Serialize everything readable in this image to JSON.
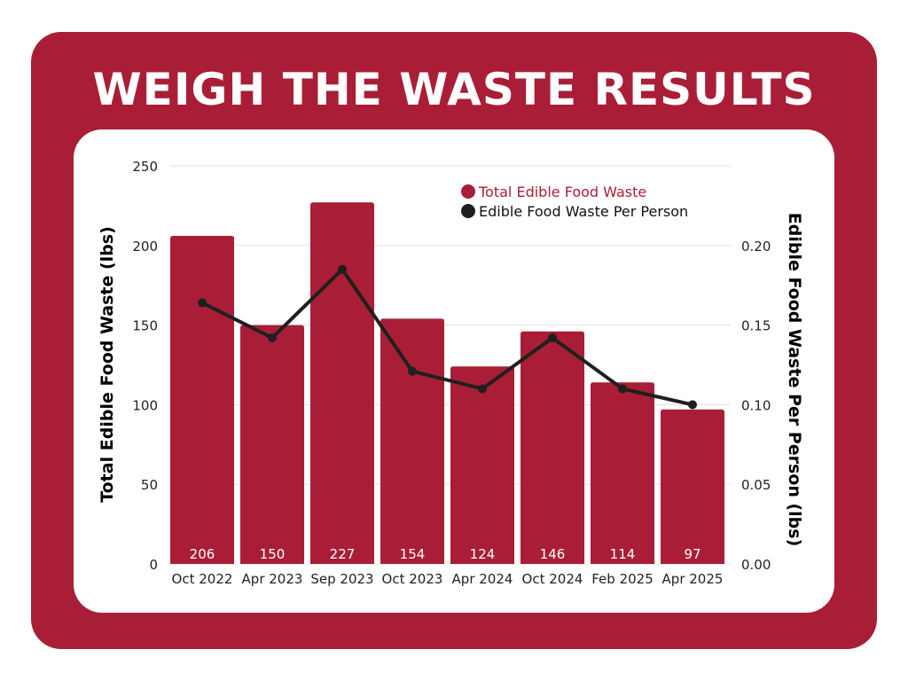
{
  "title": "WEIGH THE WASTE RESULTS",
  "colors": {
    "frame": "#a91e36",
    "bar": "#a91e36",
    "line": "#1f1f1f",
    "panel": "#ffffff",
    "grid": "#e0e0e0"
  },
  "chart_data": {
    "type": "bar+line",
    "categories": [
      "Oct 2022",
      "Apr 2023",
      "Sep 2023",
      "Oct 2023",
      "Apr 2024",
      "Oct 2024",
      "Feb 2025",
      "Apr 2025"
    ],
    "series": [
      {
        "name": "Total Edible Food Waste",
        "type": "bar",
        "axis": "left",
        "values": [
          206,
          150,
          227,
          154,
          124,
          146,
          114,
          97
        ]
      },
      {
        "name": "Edible Food Waste Per Person",
        "type": "line",
        "axis": "right",
        "values": [
          0.164,
          0.142,
          0.185,
          0.121,
          0.11,
          0.142,
          0.11,
          0.1
        ]
      }
    ],
    "ylabel": "Total Edible Food Waste (lbs)",
    "y2label": "Edible Food Waste Per Person (lbs)",
    "ylim": [
      0,
      250
    ],
    "yticks": [
      "0",
      "50",
      "100",
      "150",
      "200",
      "250"
    ],
    "y2lim": [
      0,
      0.25
    ],
    "y2ticks": [
      "0.00",
      "0.05",
      "0.10",
      "0.15",
      "0.20"
    ],
    "grid": true,
    "legend": "top-right",
    "data_labels": true
  }
}
